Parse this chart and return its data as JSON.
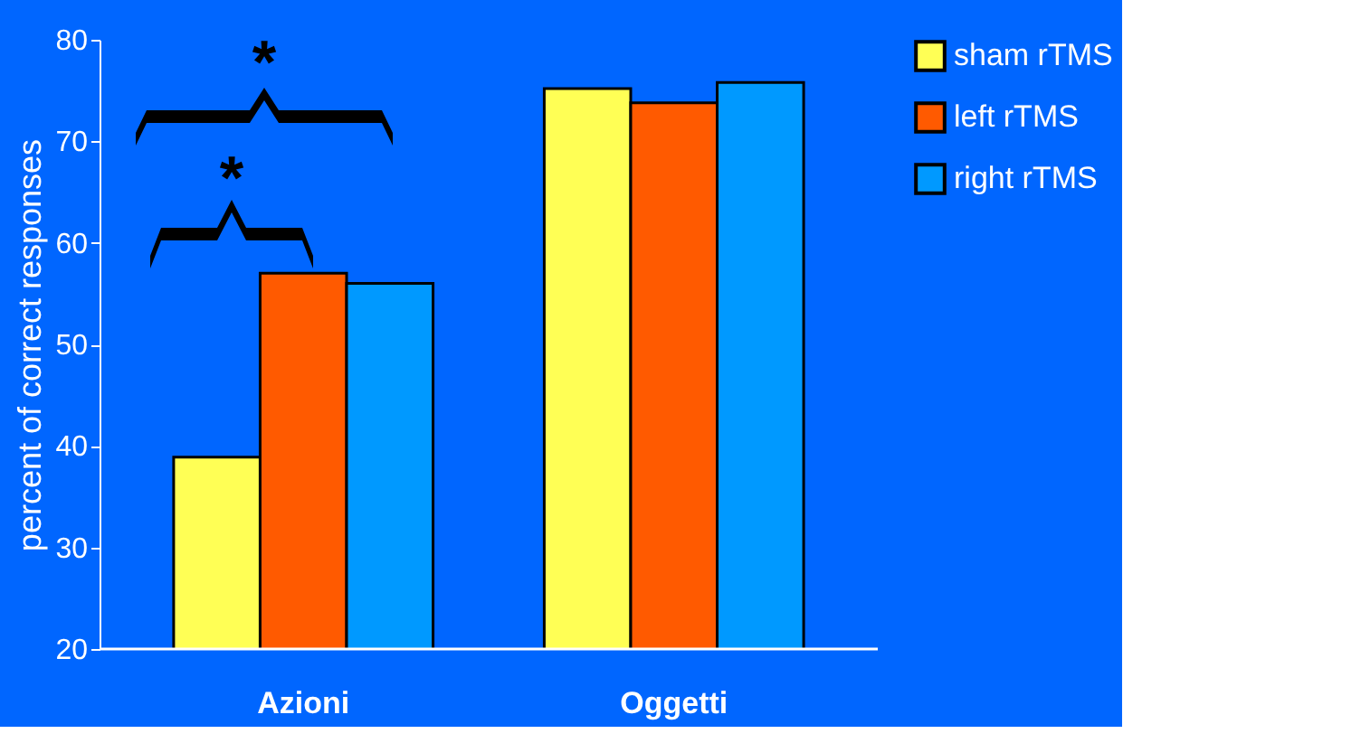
{
  "chart_data": {
    "type": "bar",
    "ylabel": "percent of correct responses",
    "categories": [
      "Azioni",
      "Oggetti"
    ],
    "series": [
      {
        "name": "sham rTMS",
        "color": "#ffff55",
        "values": [
          38.9,
          75.2
        ]
      },
      {
        "name": "left rTMS",
        "color": "#ff5a00",
        "values": [
          57,
          73.8
        ]
      },
      {
        "name": "right rTMS",
        "color": "#0099ff",
        "values": [
          56,
          75.8
        ]
      }
    ],
    "ylim": [
      20,
      80
    ],
    "yticks": [
      20,
      30,
      40,
      50,
      60,
      70,
      80
    ],
    "grid": false,
    "legend": "right",
    "annotations": [
      "*",
      "*"
    ]
  }
}
